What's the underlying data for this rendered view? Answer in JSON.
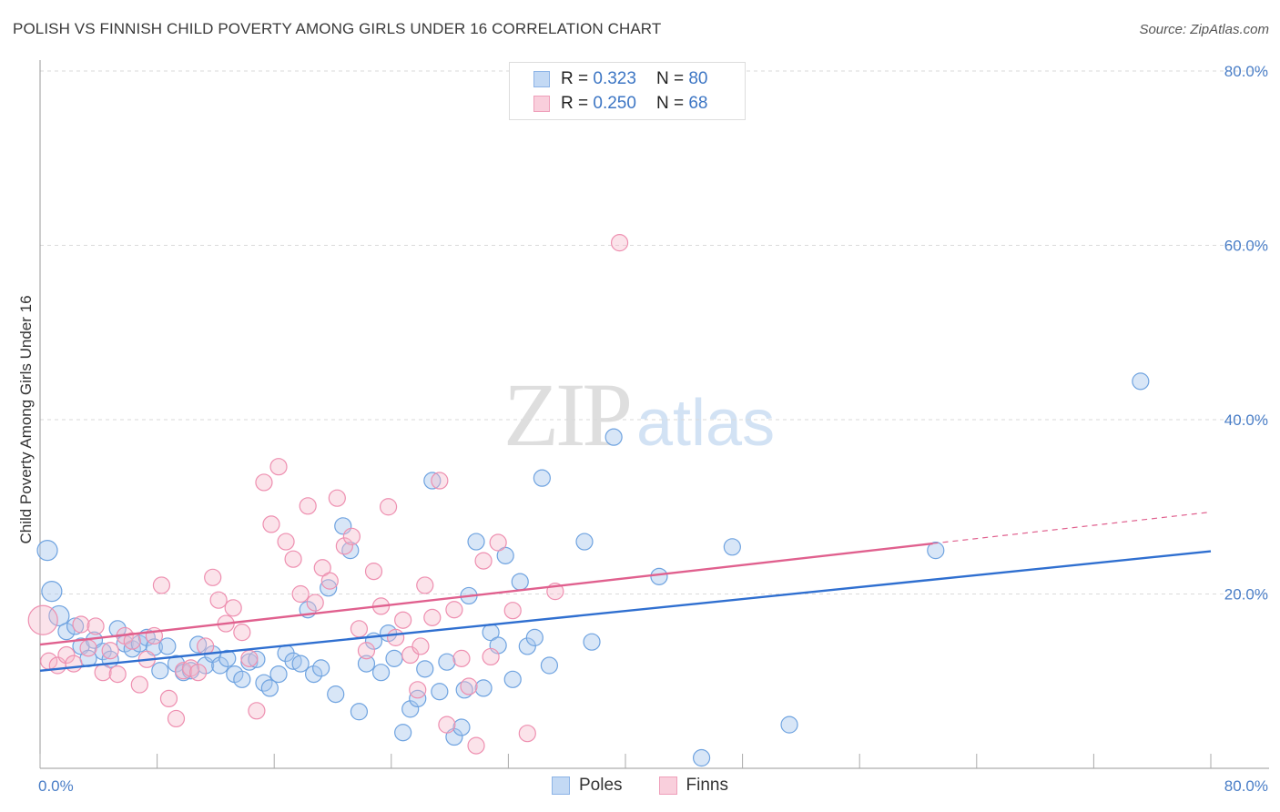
{
  "title": "POLISH VS FINNISH CHILD POVERTY AMONG GIRLS UNDER 16 CORRELATION CHART",
  "source": "Source: ZipAtlas.com",
  "watermark": {
    "zip": "ZIP",
    "atlas": "atlas"
  },
  "legend_top": [
    {
      "r_label": "R =",
      "r_value": "0.323",
      "n_label": "N =",
      "n_value": "80",
      "color": "#a9c8ee"
    },
    {
      "r_label": "R =",
      "r_value": "0.250",
      "n_label": "N =",
      "n_value": "68",
      "color": "#f5b8cb"
    }
  ],
  "legend_bottom": [
    {
      "label": "Poles",
      "color": "#a9c8ee"
    },
    {
      "label": "Finns",
      "color": "#f5b8cb"
    }
  ],
  "chart_data": {
    "type": "scatter",
    "xlabel": "",
    "ylabel": "Child Poverty Among Girls Under 16",
    "xlim": [
      0,
      80
    ],
    "ylim": [
      0,
      80
    ],
    "x_tick_labels": [
      "0.0%",
      "80.0%"
    ],
    "y_ticks": [
      20,
      40,
      60,
      80
    ],
    "y_tick_labels": [
      "20.0%",
      "40.0%",
      "60.0%",
      "80.0%"
    ],
    "grid": true,
    "colors": {
      "poles": "#6fa3e0",
      "poles_line": "#2f6fd0",
      "finns": "#ee8fb0",
      "finns_line": "#e0608e"
    },
    "series": [
      {
        "name": "Poles",
        "trend": {
          "x": [
            0,
            80
          ],
          "y": [
            11.2,
            24.9
          ],
          "solid_to": 80
        },
        "points": [
          [
            0.5,
            25.0
          ],
          [
            0.8,
            20.3
          ],
          [
            1.3,
            17.5
          ],
          [
            1.8,
            15.7
          ],
          [
            2.4,
            16.3
          ],
          [
            2.8,
            14.0
          ],
          [
            3.3,
            12.6
          ],
          [
            3.7,
            14.7
          ],
          [
            4.3,
            13.4
          ],
          [
            4.8,
            12.5
          ],
          [
            5.3,
            16.0
          ],
          [
            5.8,
            14.3
          ],
          [
            6.3,
            13.7
          ],
          [
            6.8,
            14.3
          ],
          [
            7.3,
            15.0
          ],
          [
            7.8,
            13.9
          ],
          [
            8.2,
            11.2
          ],
          [
            8.7,
            14.0
          ],
          [
            9.3,
            12.0
          ],
          [
            9.8,
            11.0
          ],
          [
            10.3,
            11.2
          ],
          [
            10.8,
            14.2
          ],
          [
            11.3,
            11.8
          ],
          [
            11.8,
            13.1
          ],
          [
            12.3,
            11.8
          ],
          [
            12.8,
            12.6
          ],
          [
            13.3,
            10.8
          ],
          [
            13.8,
            10.2
          ],
          [
            14.3,
            12.2
          ],
          [
            14.8,
            12.5
          ],
          [
            15.3,
            9.8
          ],
          [
            15.7,
            9.2
          ],
          [
            16.3,
            10.8
          ],
          [
            16.8,
            13.2
          ],
          [
            17.3,
            12.3
          ],
          [
            17.8,
            12.0
          ],
          [
            18.3,
            18.2
          ],
          [
            18.7,
            10.8
          ],
          [
            19.2,
            11.5
          ],
          [
            19.7,
            20.7
          ],
          [
            20.2,
            8.5
          ],
          [
            20.7,
            27.8
          ],
          [
            21.2,
            25.0
          ],
          [
            21.8,
            6.5
          ],
          [
            22.3,
            12.0
          ],
          [
            22.8,
            14.6
          ],
          [
            23.3,
            11.0
          ],
          [
            23.8,
            15.5
          ],
          [
            24.2,
            12.6
          ],
          [
            24.8,
            4.1
          ],
          [
            25.3,
            6.8
          ],
          [
            25.8,
            8.0
          ],
          [
            26.3,
            11.4
          ],
          [
            26.8,
            33.0
          ],
          [
            27.3,
            8.8
          ],
          [
            27.8,
            12.2
          ],
          [
            28.3,
            3.6
          ],
          [
            28.8,
            4.7
          ],
          [
            29.3,
            19.8
          ],
          [
            29.8,
            26.0
          ],
          [
            30.3,
            9.2
          ],
          [
            30.8,
            15.6
          ],
          [
            31.3,
            14.1
          ],
          [
            31.8,
            24.4
          ],
          [
            32.3,
            10.2
          ],
          [
            32.8,
            21.4
          ],
          [
            33.3,
            14.0
          ],
          [
            33.8,
            15.0
          ],
          [
            34.3,
            33.3
          ],
          [
            34.8,
            11.8
          ],
          [
            37.2,
            26.0
          ],
          [
            37.7,
            14.5
          ],
          [
            39.2,
            38.0
          ],
          [
            42.3,
            22.0
          ],
          [
            45.2,
            1.2
          ],
          [
            47.3,
            25.4
          ],
          [
            51.2,
            5.0
          ],
          [
            61.2,
            25.0
          ],
          [
            75.2,
            44.4
          ],
          [
            29.0,
            9.0
          ]
        ]
      },
      {
        "name": "Finns",
        "trend": {
          "x": [
            0,
            80
          ],
          "y": [
            14.2,
            29.4
          ],
          "solid_to": 61
        },
        "points": [
          [
            0.2,
            17.0
          ],
          [
            0.6,
            12.3
          ],
          [
            1.2,
            11.8
          ],
          [
            1.8,
            13.0
          ],
          [
            2.3,
            12.0
          ],
          [
            2.8,
            16.5
          ],
          [
            3.3,
            13.8
          ],
          [
            3.8,
            16.3
          ],
          [
            4.3,
            11.0
          ],
          [
            4.8,
            13.5
          ],
          [
            5.3,
            10.8
          ],
          [
            5.8,
            15.2
          ],
          [
            6.3,
            14.6
          ],
          [
            6.8,
            9.6
          ],
          [
            7.3,
            12.5
          ],
          [
            7.8,
            15.2
          ],
          [
            8.3,
            21.0
          ],
          [
            8.8,
            8.0
          ],
          [
            9.3,
            5.7
          ],
          [
            9.8,
            11.2
          ],
          [
            10.3,
            11.5
          ],
          [
            10.8,
            11.0
          ],
          [
            11.3,
            14.0
          ],
          [
            11.8,
            21.9
          ],
          [
            12.2,
            19.3
          ],
          [
            12.7,
            16.6
          ],
          [
            13.2,
            18.4
          ],
          [
            13.8,
            15.6
          ],
          [
            14.3,
            12.6
          ],
          [
            14.8,
            6.6
          ],
          [
            15.3,
            32.8
          ],
          [
            15.8,
            28.0
          ],
          [
            16.3,
            34.6
          ],
          [
            16.8,
            26.0
          ],
          [
            17.3,
            24.0
          ],
          [
            17.8,
            20.0
          ],
          [
            18.3,
            30.1
          ],
          [
            18.8,
            19.0
          ],
          [
            19.3,
            23.0
          ],
          [
            19.8,
            21.5
          ],
          [
            20.3,
            31.0
          ],
          [
            20.8,
            25.5
          ],
          [
            21.3,
            26.6
          ],
          [
            21.8,
            16.0
          ],
          [
            22.3,
            13.5
          ],
          [
            22.8,
            22.6
          ],
          [
            23.3,
            18.6
          ],
          [
            23.8,
            30.0
          ],
          [
            24.3,
            15.0
          ],
          [
            24.8,
            17.0
          ],
          [
            25.3,
            13.0
          ],
          [
            25.8,
            9.0
          ],
          [
            26.3,
            21.0
          ],
          [
            26.8,
            17.3
          ],
          [
            27.3,
            33.0
          ],
          [
            27.8,
            5.0
          ],
          [
            28.3,
            18.2
          ],
          [
            28.8,
            12.6
          ],
          [
            29.3,
            9.4
          ],
          [
            29.8,
            2.6
          ],
          [
            30.3,
            23.8
          ],
          [
            30.8,
            12.8
          ],
          [
            31.3,
            25.9
          ],
          [
            32.3,
            18.1
          ],
          [
            33.3,
            4.0
          ],
          [
            39.6,
            60.3
          ],
          [
            35.2,
            20.3
          ],
          [
            26.0,
            14.0
          ]
        ]
      }
    ]
  }
}
